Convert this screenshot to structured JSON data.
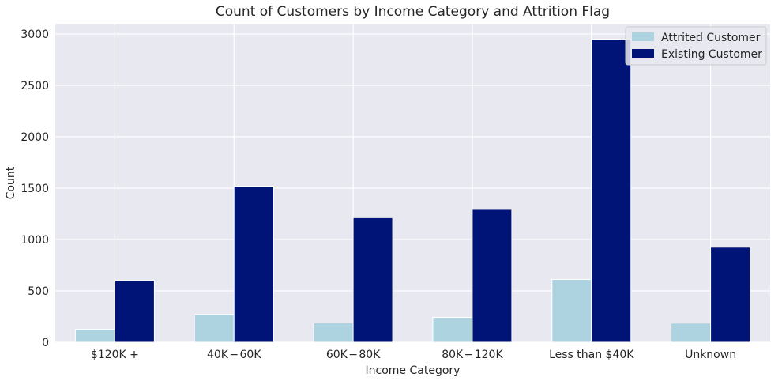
{
  "chart_data": {
    "type": "bar",
    "title": "Count of Customers by Income Category and Attrition Flag",
    "xlabel": "Income Category",
    "ylabel": "Count",
    "categories": [
      "$120K +",
      "$40K - $60K",
      "$60K - $80K",
      "$80K - $120K",
      "Less than $40K",
      "Unknown"
    ],
    "category_display": [
      "$120K +",
      "40K − 60K",
      "60K − 80K",
      "80K − 120K",
      "Less than $40K",
      "Unknown"
    ],
    "series": [
      {
        "name": "Attrited Customer",
        "color": "#add3e0",
        "values": [
          126,
          271,
          189,
          242,
          612,
          187
        ]
      },
      {
        "name": "Existing Customer",
        "color": "#001478",
        "values": [
          601,
          1519,
          1213,
          1293,
          2949,
          925
        ]
      }
    ],
    "ylim": [
      0,
      3100
    ],
    "yticks": [
      0,
      500,
      1000,
      1500,
      2000,
      2500,
      3000
    ],
    "grid": true,
    "legend_position": "top-right",
    "background": "#e8e8f0"
  }
}
